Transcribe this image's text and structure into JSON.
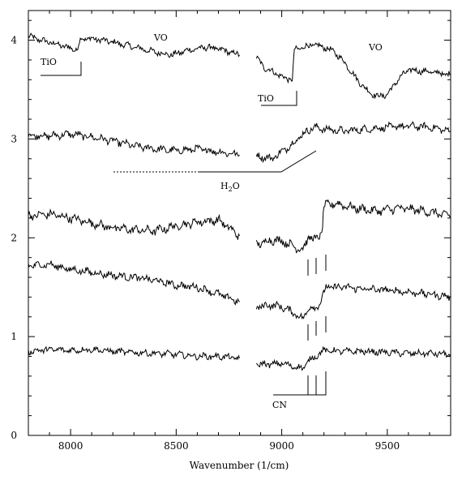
{
  "chart_data": {
    "type": "line",
    "title": "",
    "xlabel": "Wavenumber (1/cm)",
    "ylabel": "",
    "xlim": [
      7800,
      9800
    ],
    "ylim": [
      0,
      4.3
    ],
    "x_ticks": [
      8000,
      8500,
      9000,
      9500
    ],
    "x_tick_labels": [
      "8000",
      "8500",
      "9000",
      "9500"
    ],
    "y_ticks": [
      0,
      1,
      2,
      3,
      4
    ],
    "y_tick_labels": [
      "0",
      "1",
      "2",
      "3",
      "4"
    ],
    "gap": [
      8800,
      8880
    ],
    "series": [
      {
        "noise": 0.025,
        "points": [
          [
            7800,
            4.04
          ],
          [
            7860,
            4.0
          ],
          [
            7950,
            3.95
          ],
          [
            8030,
            3.9
          ],
          [
            8050,
            4.02
          ],
          [
            8120,
            4.01
          ],
          [
            8200,
            3.98
          ],
          [
            8300,
            3.93
          ],
          [
            8400,
            3.88
          ],
          [
            8480,
            3.85
          ],
          [
            8560,
            3.9
          ],
          [
            8650,
            3.93
          ],
          [
            8720,
            3.9
          ],
          [
            8800,
            3.85
          ],
          null,
          [
            8880,
            3.82
          ],
          [
            8920,
            3.72
          ],
          [
            8960,
            3.68
          ],
          [
            9010,
            3.62
          ],
          [
            9050,
            3.6
          ],
          [
            9060,
            3.9
          ],
          [
            9100,
            3.93
          ],
          [
            9150,
            3.95
          ],
          [
            9200,
            3.93
          ],
          [
            9250,
            3.88
          ],
          [
            9300,
            3.77
          ],
          [
            9350,
            3.62
          ],
          [
            9400,
            3.5
          ],
          [
            9450,
            3.43
          ],
          [
            9500,
            3.45
          ],
          [
            9550,
            3.6
          ],
          [
            9600,
            3.7
          ],
          [
            9700,
            3.68
          ],
          [
            9800,
            3.65
          ]
        ]
      },
      {
        "noise": 0.03,
        "points": [
          [
            7800,
            3.04
          ],
          [
            7900,
            3.03
          ],
          [
            8000,
            3.05
          ],
          [
            8100,
            3.02
          ],
          [
            8200,
            2.98
          ],
          [
            8300,
            2.93
          ],
          [
            8400,
            2.9
          ],
          [
            8500,
            2.88
          ],
          [
            8600,
            2.9
          ],
          [
            8700,
            2.87
          ],
          [
            8800,
            2.84
          ],
          null,
          [
            8880,
            2.83
          ],
          [
            8950,
            2.8
          ],
          [
            9000,
            2.87
          ],
          [
            9050,
            2.95
          ],
          [
            9100,
            3.05
          ],
          [
            9150,
            3.12
          ],
          [
            9200,
            3.1
          ],
          [
            9300,
            3.08
          ],
          [
            9400,
            3.1
          ],
          [
            9500,
            3.12
          ],
          [
            9600,
            3.13
          ],
          [
            9700,
            3.12
          ],
          [
            9800,
            3.08
          ]
        ]
      },
      {
        "noise": 0.035,
        "points": [
          [
            7800,
            2.22
          ],
          [
            7900,
            2.24
          ],
          [
            8000,
            2.2
          ],
          [
            8100,
            2.15
          ],
          [
            8200,
            2.1
          ],
          [
            8300,
            2.08
          ],
          [
            8400,
            2.07
          ],
          [
            8500,
            2.12
          ],
          [
            8600,
            2.16
          ],
          [
            8700,
            2.18
          ],
          [
            8800,
            2.02
          ],
          null,
          [
            8880,
            1.93
          ],
          [
            8950,
            1.98
          ],
          [
            9000,
            1.97
          ],
          [
            9050,
            1.92
          ],
          [
            9100,
            1.88
          ],
          [
            9130,
            2.02
          ],
          [
            9160,
            1.97
          ],
          [
            9190,
            2.06
          ],
          [
            9200,
            2.32
          ],
          [
            9250,
            2.35
          ],
          [
            9350,
            2.3
          ],
          [
            9450,
            2.27
          ],
          [
            9550,
            2.3
          ],
          [
            9650,
            2.28
          ],
          [
            9800,
            2.22
          ]
        ]
      },
      {
        "noise": 0.03,
        "points": [
          [
            7800,
            1.72
          ],
          [
            7900,
            1.73
          ],
          [
            8000,
            1.68
          ],
          [
            8100,
            1.65
          ],
          [
            8200,
            1.62
          ],
          [
            8300,
            1.6
          ],
          [
            8400,
            1.57
          ],
          [
            8500,
            1.52
          ],
          [
            8600,
            1.5
          ],
          [
            8700,
            1.43
          ],
          [
            8800,
            1.35
          ],
          null,
          [
            8880,
            1.3
          ],
          [
            8950,
            1.32
          ],
          [
            9000,
            1.3
          ],
          [
            9050,
            1.25
          ],
          [
            9100,
            1.18
          ],
          [
            9130,
            1.3
          ],
          [
            9160,
            1.28
          ],
          [
            9190,
            1.38
          ],
          [
            9210,
            1.5
          ],
          [
            9300,
            1.5
          ],
          [
            9400,
            1.48
          ],
          [
            9500,
            1.47
          ],
          [
            9600,
            1.45
          ],
          [
            9700,
            1.43
          ],
          [
            9800,
            1.4
          ]
        ]
      },
      {
        "noise": 0.025,
        "points": [
          [
            7800,
            0.85
          ],
          [
            7900,
            0.87
          ],
          [
            8000,
            0.86
          ],
          [
            8100,
            0.87
          ],
          [
            8200,
            0.85
          ],
          [
            8300,
            0.84
          ],
          [
            8400,
            0.83
          ],
          [
            8500,
            0.82
          ],
          [
            8600,
            0.8
          ],
          [
            8700,
            0.8
          ],
          [
            8800,
            0.78
          ],
          null,
          [
            8880,
            0.72
          ],
          [
            8950,
            0.72
          ],
          [
            9000,
            0.73
          ],
          [
            9050,
            0.7
          ],
          [
            9100,
            0.68
          ],
          [
            9130,
            0.76
          ],
          [
            9160,
            0.8
          ],
          [
            9200,
            0.86
          ],
          [
            9300,
            0.85
          ],
          [
            9400,
            0.85
          ],
          [
            9500,
            0.84
          ],
          [
            9600,
            0.83
          ],
          [
            9700,
            0.83
          ],
          [
            9800,
            0.82
          ]
        ]
      }
    ],
    "annotations": {
      "vo_1": "VO",
      "vo_2": "VO",
      "tio_1": "TiO",
      "tio_2": "TiO",
      "h2o": "H",
      "h2o_subscript": "2",
      "h2o_suffix": "O",
      "cn": "CN"
    }
  }
}
